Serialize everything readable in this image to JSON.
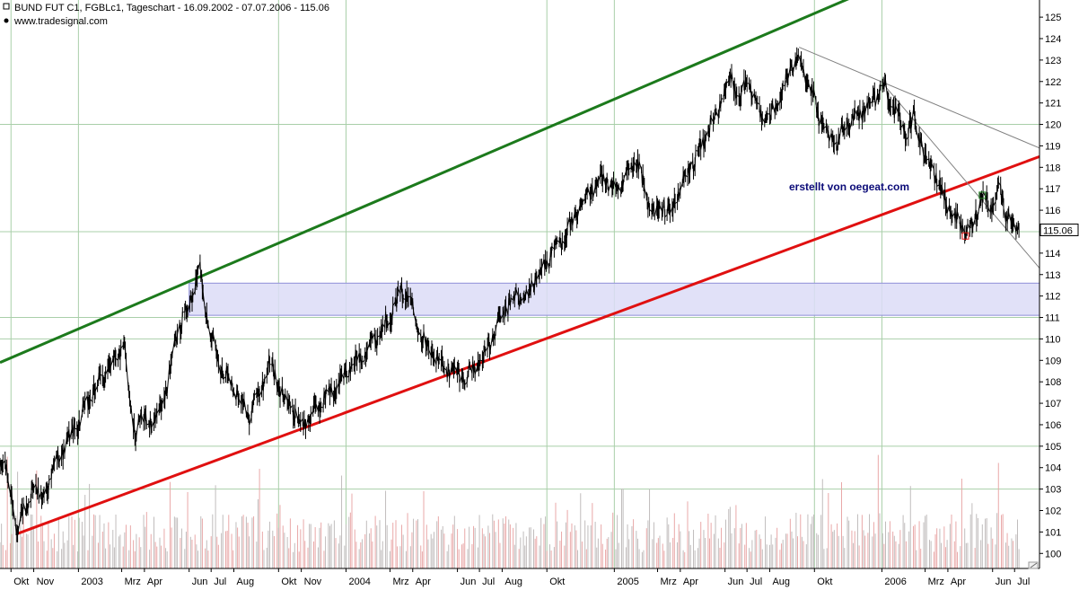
{
  "header": {
    "title": "BUND FUT C1, FGBLc1, Tageschart - 16.09.2002 - 07.07.2006 - 115.06",
    "source": "www.tradesignal.com"
  },
  "annotation": "erstellt von oegeat.com",
  "last_price_label": "115.06",
  "colors": {
    "price": "#000000",
    "upper_channel": "#1c7a1c",
    "lower_channel": "#e01010",
    "zone_fill": "#dcdcf7",
    "zone_border": "#8e8ed8",
    "volume": "#c0bcbc",
    "volume_pink": "#e9a8a8",
    "grid": "#a9cfa9"
  },
  "chart_data": {
    "type": "line",
    "title": "BUND FUT C1, FGBLc1, Tageschart - 16.09.2002 - 07.07.2006 - 115.06",
    "xlabel": "",
    "ylabel": "",
    "ylim": [
      99.3,
      125.8
    ],
    "grid": true,
    "y_ticks": [
      100,
      101,
      102,
      103,
      104,
      105,
      106,
      107,
      108,
      109,
      110,
      111,
      112,
      113,
      114,
      115,
      116,
      117,
      118,
      119,
      120,
      121,
      122,
      123,
      124,
      125
    ],
    "x_ticks": [
      {
        "label": "Okt",
        "date": "2002-10-01"
      },
      {
        "label": "Nov",
        "date": "2002-11-01"
      },
      {
        "label": "2003",
        "date": "2003-01-01"
      },
      {
        "label": "Mrz",
        "date": "2003-03-01"
      },
      {
        "label": "Apr",
        "date": "2003-04-01"
      },
      {
        "label": "Jun",
        "date": "2003-06-01"
      },
      {
        "label": "Jul",
        "date": "2003-07-01"
      },
      {
        "label": "Aug",
        "date": "2003-08-01"
      },
      {
        "label": "Okt",
        "date": "2003-10-01"
      },
      {
        "label": "Nov",
        "date": "2003-11-01"
      },
      {
        "label": "2004",
        "date": "2004-01-01"
      },
      {
        "label": "Mrz",
        "date": "2004-03-01"
      },
      {
        "label": "Apr",
        "date": "2004-04-01"
      },
      {
        "label": "Jun",
        "date": "2004-06-01"
      },
      {
        "label": "Jul",
        "date": "2004-07-01"
      },
      {
        "label": "Aug",
        "date": "2004-08-01"
      },
      {
        "label": "Okt",
        "date": "2004-10-01"
      },
      {
        "label": "2005",
        "date": "2005-01-01"
      },
      {
        "label": "Mrz",
        "date": "2005-03-01"
      },
      {
        "label": "Apr",
        "date": "2005-04-01"
      },
      {
        "label": "Jun",
        "date": "2005-06-01"
      },
      {
        "label": "Jul",
        "date": "2005-07-01"
      },
      {
        "label": "Aug",
        "date": "2005-08-01"
      },
      {
        "label": "Okt",
        "date": "2005-10-01"
      },
      {
        "label": "2006",
        "date": "2006-01-01"
      },
      {
        "label": "Mrz",
        "date": "2006-03-01"
      },
      {
        "label": "Apr",
        "date": "2006-04-01"
      },
      {
        "label": "Jun",
        "date": "2006-06-01"
      },
      {
        "label": "Jul",
        "date": "2006-07-01"
      }
    ],
    "x_range": [
      "2002-09-16",
      "2006-08-04"
    ],
    "series": [
      {
        "values": [
          {
            "x": "2002-09-16",
            "y": 103.8
          },
          {
            "x": "2002-09-23",
            "y": 104.4
          },
          {
            "x": "2002-10-01",
            "y": 102.7
          },
          {
            "x": "2002-10-08",
            "y": 101.0
          },
          {
            "x": "2002-10-16",
            "y": 102.2
          },
          {
            "x": "2002-10-24",
            "y": 101.6
          },
          {
            "x": "2002-11-01",
            "y": 103.5
          },
          {
            "x": "2002-11-12",
            "y": 102.4
          },
          {
            "x": "2002-11-22",
            "y": 103.4
          },
          {
            "x": "2002-12-05",
            "y": 104.5
          },
          {
            "x": "2002-12-20",
            "y": 105.4
          },
          {
            "x": "2003-01-06",
            "y": 106.4
          },
          {
            "x": "2003-01-22",
            "y": 107.6
          },
          {
            "x": "2003-02-05",
            "y": 108.3
          },
          {
            "x": "2003-02-20",
            "y": 109.2
          },
          {
            "x": "2003-03-05",
            "y": 109.6
          },
          {
            "x": "2003-03-14",
            "y": 106.5
          },
          {
            "x": "2003-03-20",
            "y": 105.6
          },
          {
            "x": "2003-04-01",
            "y": 106.4
          },
          {
            "x": "2003-04-15",
            "y": 106.0
          },
          {
            "x": "2003-05-01",
            "y": 107.6
          },
          {
            "x": "2003-05-15",
            "y": 110.2
          },
          {
            "x": "2003-06-01",
            "y": 111.6
          },
          {
            "x": "2003-06-16",
            "y": 113.2
          },
          {
            "x": "2003-06-24",
            "y": 111.4
          },
          {
            "x": "2003-07-05",
            "y": 109.5
          },
          {
            "x": "2003-07-20",
            "y": 108.4
          },
          {
            "x": "2003-08-05",
            "y": 107.6
          },
          {
            "x": "2003-08-20",
            "y": 106.4
          },
          {
            "x": "2003-09-05",
            "y": 107.5
          },
          {
            "x": "2003-09-20",
            "y": 109.0
          },
          {
            "x": "2003-10-01",
            "y": 107.7
          },
          {
            "x": "2003-10-15",
            "y": 107.0
          },
          {
            "x": "2003-11-01",
            "y": 106.0
          },
          {
            "x": "2003-11-15",
            "y": 106.4
          },
          {
            "x": "2003-12-01",
            "y": 107.2
          },
          {
            "x": "2003-12-20",
            "y": 107.8
          },
          {
            "x": "2004-01-05",
            "y": 108.6
          },
          {
            "x": "2004-01-20",
            "y": 109.2
          },
          {
            "x": "2004-02-05",
            "y": 109.8
          },
          {
            "x": "2004-02-20",
            "y": 110.5
          },
          {
            "x": "2004-03-05",
            "y": 111.4
          },
          {
            "x": "2004-03-20",
            "y": 112.3
          },
          {
            "x": "2004-04-01",
            "y": 111.6
          },
          {
            "x": "2004-04-10",
            "y": 110.4
          },
          {
            "x": "2004-04-25",
            "y": 109.5
          },
          {
            "x": "2004-05-10",
            "y": 108.8
          },
          {
            "x": "2004-05-25",
            "y": 108.5
          },
          {
            "x": "2004-06-10",
            "y": 108.2
          },
          {
            "x": "2004-06-25",
            "y": 108.7
          },
          {
            "x": "2004-07-10",
            "y": 109.4
          },
          {
            "x": "2004-07-25",
            "y": 110.5
          },
          {
            "x": "2004-08-05",
            "y": 111.4
          },
          {
            "x": "2004-08-20",
            "y": 112.0
          },
          {
            "x": "2004-09-01",
            "y": 111.8
          },
          {
            "x": "2004-09-15",
            "y": 112.8
          },
          {
            "x": "2004-10-01",
            "y": 113.6
          },
          {
            "x": "2004-10-15",
            "y": 114.4
          },
          {
            "x": "2004-11-01",
            "y": 115.2
          },
          {
            "x": "2004-11-15",
            "y": 116.0
          },
          {
            "x": "2004-12-01",
            "y": 117.0
          },
          {
            "x": "2004-12-15",
            "y": 117.6
          },
          {
            "x": "2005-01-05",
            "y": 116.8
          },
          {
            "x": "2005-01-20",
            "y": 117.6
          },
          {
            "x": "2005-02-01",
            "y": 118.3
          },
          {
            "x": "2005-02-10",
            "y": 117.0
          },
          {
            "x": "2005-02-20",
            "y": 116.0
          },
          {
            "x": "2005-03-01",
            "y": 115.8
          },
          {
            "x": "2005-03-10",
            "y": 116.2
          },
          {
            "x": "2005-03-20",
            "y": 115.9
          },
          {
            "x": "2005-04-01",
            "y": 117.0
          },
          {
            "x": "2005-04-15",
            "y": 118.0
          },
          {
            "x": "2005-05-01",
            "y": 119.0
          },
          {
            "x": "2005-05-15",
            "y": 120.2
          },
          {
            "x": "2005-06-01",
            "y": 121.4
          },
          {
            "x": "2005-06-10",
            "y": 122.3
          },
          {
            "x": "2005-06-20",
            "y": 121.0
          },
          {
            "x": "2005-07-01",
            "y": 122.0
          },
          {
            "x": "2005-07-15",
            "y": 120.8
          },
          {
            "x": "2005-08-01",
            "y": 120.3
          },
          {
            "x": "2005-08-15",
            "y": 121.2
          },
          {
            "x": "2005-09-01",
            "y": 122.8
          },
          {
            "x": "2005-09-10",
            "y": 123.3
          },
          {
            "x": "2005-09-20",
            "y": 122.2
          },
          {
            "x": "2005-10-01",
            "y": 121.0
          },
          {
            "x": "2005-10-15",
            "y": 119.6
          },
          {
            "x": "2005-11-01",
            "y": 119.0
          },
          {
            "x": "2005-11-15",
            "y": 120.2
          },
          {
            "x": "2005-12-01",
            "y": 120.5
          },
          {
            "x": "2005-12-15",
            "y": 121.0
          },
          {
            "x": "2006-01-05",
            "y": 121.8
          },
          {
            "x": "2006-01-20",
            "y": 120.5
          },
          {
            "x": "2006-02-01",
            "y": 119.6
          },
          {
            "x": "2006-02-15",
            "y": 120.3
          },
          {
            "x": "2006-03-01",
            "y": 118.5
          },
          {
            "x": "2006-03-15",
            "y": 117.6
          },
          {
            "x": "2006-04-01",
            "y": 116.2
          },
          {
            "x": "2006-04-15",
            "y": 115.4
          },
          {
            "x": "2006-05-01",
            "y": 114.9
          },
          {
            "x": "2006-05-10",
            "y": 116.0
          },
          {
            "x": "2006-05-20",
            "y": 116.7
          },
          {
            "x": "2006-06-01",
            "y": 116.2
          },
          {
            "x": "2006-06-10",
            "y": 117.1
          },
          {
            "x": "2006-06-20",
            "y": 115.8
          },
          {
            "x": "2006-07-01",
            "y": 115.3
          },
          {
            "x": "2006-07-07",
            "y": 115.06
          }
        ]
      }
    ],
    "trendlines": [
      {
        "name": "upper_channel",
        "from": {
          "x": "2002-09-16",
          "y": 108.9
        },
        "to": {
          "x": "2005-12-10",
          "y": 126.2
        }
      },
      {
        "name": "lower_channel",
        "from": {
          "x": "2002-10-08",
          "y": 100.9
        },
        "to": {
          "x": "2006-08-04",
          "y": 118.5
        }
      },
      {
        "name": "downtrend_thin_1",
        "from": {
          "x": "2005-09-10",
          "y": 123.6
        },
        "to": {
          "x": "2006-08-04",
          "y": 118.9
        }
      },
      {
        "name": "downtrend_thin_2",
        "from": {
          "x": "2006-01-05",
          "y": 121.8
        },
        "to": {
          "x": "2006-08-04",
          "y": 113.3
        }
      }
    ],
    "zones": [
      {
        "name": "resistance_zone",
        "x_from": "2003-06-01",
        "x_to": "2006-08-04",
        "y_from": 111.1,
        "y_to": 112.6
      }
    ],
    "markers": [
      {
        "shape": "square",
        "color": "#2a8a2a",
        "x": "2006-05-18",
        "y": 116.7
      },
      {
        "shape": "square",
        "color": "#e01010",
        "x": "2006-04-25",
        "y": 114.8
      }
    ]
  }
}
